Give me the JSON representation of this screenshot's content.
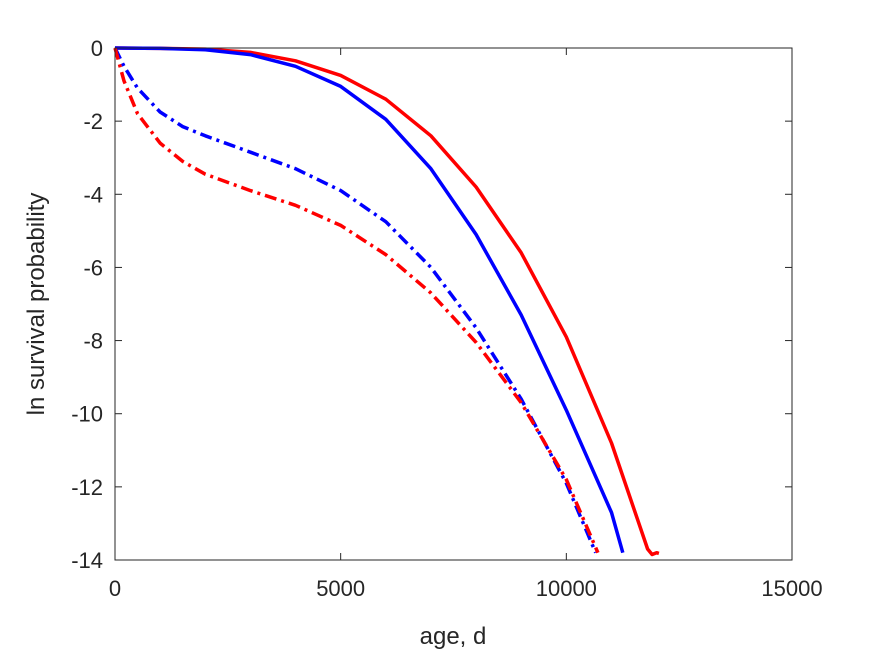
{
  "chart_data": {
    "type": "line",
    "title": "",
    "xlabel": "age, d",
    "ylabel": "ln survival probability",
    "xlim": [
      0,
      15000
    ],
    "ylim": [
      -14,
      0
    ],
    "xticks": [
      0,
      5000,
      10000,
      15000
    ],
    "yticks": [
      0,
      -2,
      -4,
      -6,
      -8,
      -10,
      -12,
      -14
    ],
    "xtick_labels": [
      "0",
      "5000",
      "10000",
      "15000"
    ],
    "ytick_labels": [
      "0",
      "-2",
      "-4",
      "-6",
      "-8",
      "-10",
      "-12",
      "-14"
    ],
    "grid": false,
    "box": true,
    "series": [
      {
        "color": "#ff0000",
        "style": "solid",
        "points": [
          [
            0,
            0
          ],
          [
            1000,
            -0.01
          ],
          [
            2000,
            -0.03
          ],
          [
            3000,
            -0.12
          ],
          [
            4000,
            -0.35
          ],
          [
            5000,
            -0.75
          ],
          [
            6000,
            -1.4
          ],
          [
            7000,
            -2.4
          ],
          [
            8000,
            -3.8
          ],
          [
            9000,
            -5.6
          ],
          [
            10000,
            -7.9
          ],
          [
            11000,
            -10.8
          ],
          [
            11800,
            -13.7
          ],
          [
            11900,
            -13.85
          ],
          [
            12000,
            -13.8
          ],
          [
            12050,
            -13.82
          ]
        ]
      },
      {
        "color": "#0000ff",
        "style": "solid",
        "points": [
          [
            0,
            0
          ],
          [
            1000,
            -0.01
          ],
          [
            2000,
            -0.05
          ],
          [
            3000,
            -0.18
          ],
          [
            4000,
            -0.5
          ],
          [
            5000,
            -1.05
          ],
          [
            6000,
            -1.95
          ],
          [
            7000,
            -3.3
          ],
          [
            8000,
            -5.1
          ],
          [
            9000,
            -7.3
          ],
          [
            10000,
            -9.9
          ],
          [
            11000,
            -12.7
          ],
          [
            11250,
            -13.8
          ]
        ]
      },
      {
        "color": "#0000ff",
        "style": "dashdot",
        "points": [
          [
            0,
            0
          ],
          [
            200,
            -0.5
          ],
          [
            500,
            -1.1
          ],
          [
            1000,
            -1.75
          ],
          [
            1500,
            -2.15
          ],
          [
            2000,
            -2.4
          ],
          [
            3000,
            -2.85
          ],
          [
            4000,
            -3.3
          ],
          [
            5000,
            -3.9
          ],
          [
            6000,
            -4.75
          ],
          [
            7000,
            -6.0
          ],
          [
            8000,
            -7.65
          ],
          [
            9000,
            -9.6
          ],
          [
            10000,
            -11.9
          ],
          [
            10650,
            -13.8
          ]
        ]
      },
      {
        "color": "#ff0000",
        "style": "dashdot",
        "points": [
          [
            0,
            0
          ],
          [
            200,
            -0.9
          ],
          [
            500,
            -1.8
          ],
          [
            1000,
            -2.6
          ],
          [
            1500,
            -3.1
          ],
          [
            2000,
            -3.45
          ],
          [
            3000,
            -3.9
          ],
          [
            4000,
            -4.3
          ],
          [
            5000,
            -4.85
          ],
          [
            6000,
            -5.65
          ],
          [
            7000,
            -6.7
          ],
          [
            8000,
            -8.05
          ],
          [
            9000,
            -9.7
          ],
          [
            10000,
            -11.8
          ],
          [
            10700,
            -13.8
          ]
        ]
      }
    ]
  }
}
